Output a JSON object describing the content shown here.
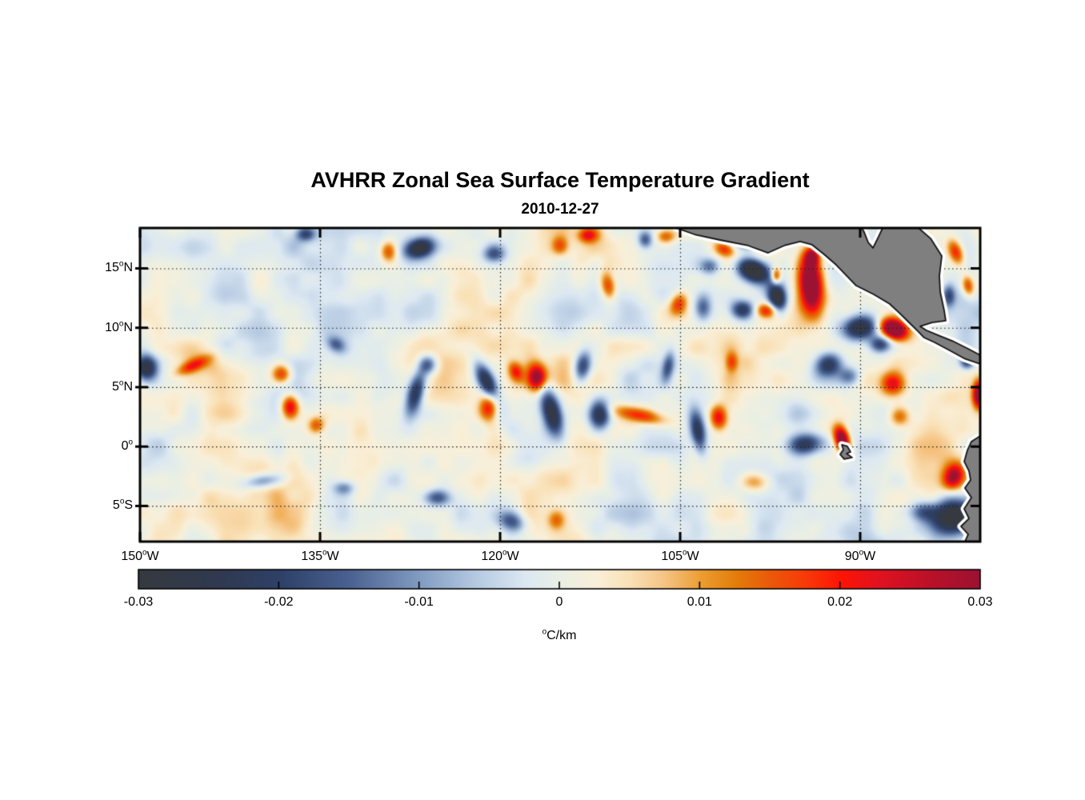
{
  "chart_data": {
    "type": "heatmap",
    "title": "AVHRR Zonal Sea Surface Temperature Gradient",
    "date": "2010-12-27",
    "geo": {
      "lon_range": [
        -150,
        -80
      ],
      "lat_range": [
        -8,
        18.4
      ]
    },
    "x_axis": {
      "ticks": [
        {
          "value": -150,
          "label": "150°W"
        },
        {
          "value": -135,
          "label": "135°W"
        },
        {
          "value": -120,
          "label": "120°W"
        },
        {
          "value": -105,
          "label": "105°W"
        },
        {
          "value": -90,
          "label": "90°W"
        }
      ]
    },
    "y_axis": {
      "ticks": [
        {
          "value": 15,
          "label": "15°N"
        },
        {
          "value": 10,
          "label": "10°N"
        },
        {
          "value": 5,
          "label": "5°N"
        },
        {
          "value": 0,
          "label": "0°"
        },
        {
          "value": -5,
          "label": "5°S"
        }
      ]
    },
    "gridlines": {
      "lats": [
        15,
        10,
        5,
        0,
        -5
      ],
      "lons": [
        -135,
        -120,
        -105,
        -90
      ],
      "style": "dotted"
    },
    "colorbar": {
      "min": -0.03,
      "max": 0.03,
      "ticks": [
        -0.03,
        -0.02,
        -0.01,
        0,
        0.01,
        0.02,
        0.03
      ],
      "tick_labels": [
        "-0.03",
        "-0.02",
        "-0.01",
        "0",
        "0.01",
        "0.02",
        "0.03"
      ],
      "units": "°C/km",
      "stops": [
        [
          0.0,
          "#36393f"
        ],
        [
          0.09,
          "#30394f"
        ],
        [
          0.17,
          "#2e4168"
        ],
        [
          0.25,
          "#4a6191"
        ],
        [
          0.33,
          "#7e99c0"
        ],
        [
          0.4,
          "#b4c9e1"
        ],
        [
          0.46,
          "#dce8f2"
        ],
        [
          0.5,
          "#e9efe5"
        ],
        [
          0.545,
          "#f9efd8"
        ],
        [
          0.585,
          "#f9e0b5"
        ],
        [
          0.625,
          "#f5c484"
        ],
        [
          0.67,
          "#ec9c30"
        ],
        [
          0.71,
          "#e37d0b"
        ],
        [
          0.75,
          "#eb5a0a"
        ],
        [
          0.79,
          "#f73c08"
        ],
        [
          0.835,
          "#fd1405"
        ],
        [
          0.88,
          "#e11220"
        ],
        [
          0.94,
          "#ba1129"
        ],
        [
          1.0,
          "#9c1232"
        ]
      ]
    },
    "field": {
      "units": "°C/km",
      "seed": 7,
      "noise": {
        "bias": 0.0008,
        "octave_amps": [
          0.0045,
          0.004,
          0.0022
        ],
        "octave_wavelengths_deg": [
          6.0,
          2.8,
          1.4
        ]
      },
      "feature_format": [
        "lon",
        "lat",
        "amplitude",
        "sigma_lon_deg",
        "sigma_lat_deg",
        "rotation_deg"
      ],
      "features": [
        [
          -94.1,
          13.7,
          0.042,
          1.0,
          2.5,
          5
        ],
        [
          -94.0,
          16.0,
          0.024,
          0.55,
          0.75,
          0
        ],
        [
          -97.0,
          14.35,
          0.022,
          0.4,
          0.7,
          0
        ],
        [
          -97.8,
          11.45,
          0.022,
          0.9,
          0.65,
          0
        ],
        [
          -101.3,
          16.6,
          0.018,
          0.9,
          0.6,
          -20
        ],
        [
          -98.9,
          14.8,
          -0.036,
          1.3,
          0.9,
          -20
        ],
        [
          -96.9,
          12.5,
          -0.034,
          0.75,
          1.3,
          10
        ],
        [
          -99.8,
          11.5,
          -0.024,
          1.0,
          0.8,
          0
        ],
        [
          -99.3,
          17.4,
          -0.026,
          1.2,
          0.7,
          0
        ],
        [
          -102.5,
          15.2,
          -0.015,
          0.8,
          0.7,
          0
        ],
        [
          -87.2,
          9.9,
          0.042,
          1.15,
          0.8,
          -25
        ],
        [
          -90.0,
          10.0,
          -0.03,
          1.5,
          1.0,
          10
        ],
        [
          -88.3,
          8.6,
          -0.02,
          0.9,
          0.7,
          0
        ],
        [
          -92.7,
          6.9,
          -0.021,
          1.2,
          1.0,
          20
        ],
        [
          -90.9,
          5.9,
          -0.015,
          0.9,
          0.8,
          0
        ],
        [
          -87.3,
          5.3,
          0.021,
          1.0,
          1.0,
          0
        ],
        [
          -86.7,
          2.5,
          0.012,
          0.8,
          0.8,
          0
        ],
        [
          -81.1,
          7.1,
          -0.02,
          0.6,
          0.6,
          0
        ],
        [
          -80.1,
          4.4,
          0.034,
          0.5,
          1.2,
          0
        ],
        [
          -82.0,
          16.3,
          0.02,
          0.6,
          1.1,
          20
        ],
        [
          -81.0,
          13.5,
          0.019,
          0.5,
          0.9,
          10
        ],
        [
          -82.6,
          12.7,
          -0.016,
          0.5,
          0.9,
          0
        ],
        [
          -91.5,
          0.6,
          0.036,
          0.6,
          1.1,
          15
        ],
        [
          -94.5,
          0.2,
          -0.024,
          1.5,
          0.9,
          5
        ],
        [
          -103.5,
          1.2,
          -0.022,
          0.6,
          1.7,
          10
        ],
        [
          -101.8,
          2.4,
          0.02,
          0.7,
          1.0,
          0
        ],
        [
          -82.3,
          -6.0,
          -0.034,
          2.0,
          1.5,
          15
        ],
        [
          -84.8,
          -5.5,
          -0.015,
          1.2,
          0.8,
          0
        ],
        [
          -82.2,
          -2.5,
          0.024,
          0.8,
          1.1,
          -20
        ],
        [
          -98.7,
          -3.0,
          0.012,
          1.2,
          0.8,
          0
        ],
        [
          -113.1,
          6.75,
          -0.022,
          0.7,
          1.3,
          -10
        ],
        [
          -115.7,
          2.9,
          -0.03,
          0.8,
          2.2,
          15
        ],
        [
          -116.9,
          5.8,
          0.03,
          0.8,
          1.1,
          0
        ],
        [
          -118.7,
          6.3,
          0.018,
          0.6,
          0.9,
          20
        ],
        [
          -121.1,
          5.4,
          -0.028,
          0.7,
          1.8,
          25
        ],
        [
          -120.9,
          3.25,
          0.024,
          0.8,
          1.2,
          0
        ],
        [
          -111.7,
          2.7,
          -0.028,
          0.9,
          1.2,
          0
        ],
        [
          -108.3,
          2.6,
          0.016,
          2.2,
          0.6,
          -12
        ],
        [
          -106.0,
          6.7,
          -0.016,
          0.5,
          1.3,
          -10
        ],
        [
          -100.7,
          7.1,
          0.014,
          0.5,
          0.8,
          0
        ],
        [
          -111.0,
          13.5,
          0.018,
          0.6,
          1.2,
          10
        ],
        [
          -105.1,
          12.1,
          0.018,
          0.7,
          1.0,
          -20
        ],
        [
          -103.1,
          11.7,
          -0.016,
          0.7,
          1.1,
          0
        ],
        [
          -115.0,
          16.9,
          0.016,
          0.7,
          0.8,
          0
        ],
        [
          -112.7,
          17.8,
          0.018,
          0.8,
          0.6,
          0
        ],
        [
          -106.2,
          17.7,
          0.016,
          0.8,
          0.6,
          0
        ],
        [
          -107.9,
          17.4,
          -0.016,
          0.6,
          0.7,
          0
        ],
        [
          -120.5,
          16.2,
          -0.016,
          0.9,
          0.7,
          0
        ],
        [
          -126.7,
          16.7,
          -0.03,
          1.2,
          0.8,
          15
        ],
        [
          -129.3,
          16.4,
          0.018,
          0.7,
          0.9,
          0
        ],
        [
          -136.2,
          17.9,
          -0.018,
          0.8,
          0.6,
          0
        ],
        [
          -149.5,
          6.6,
          -0.03,
          0.9,
          1.1,
          0
        ],
        [
          -145.6,
          6.8,
          0.015,
          1.5,
          0.5,
          25
        ],
        [
          -138.2,
          6.1,
          0.02,
          0.8,
          0.8,
          0
        ],
        [
          -137.5,
          3.4,
          0.023,
          0.7,
          1.0,
          0
        ],
        [
          -135.3,
          1.8,
          0.014,
          0.7,
          0.7,
          0
        ],
        [
          -133.7,
          8.6,
          -0.013,
          0.8,
          0.6,
          -30
        ],
        [
          -127.0,
          4.6,
          -0.026,
          0.7,
          1.9,
          -15
        ],
        [
          -126.0,
          6.9,
          -0.017,
          0.8,
          0.8,
          0
        ],
        [
          -139.7,
          -2.9,
          -0.014,
          1.8,
          0.6,
          8
        ],
        [
          -125.3,
          -4.3,
          -0.018,
          1.1,
          0.7,
          0
        ],
        [
          -133.0,
          -3.5,
          -0.012,
          0.9,
          0.6,
          0
        ],
        [
          -119.0,
          -6.3,
          -0.016,
          1.2,
          0.8,
          -20
        ],
        [
          -115.3,
          -6.2,
          0.012,
          0.7,
          0.8,
          0
        ],
        [
          -144.7,
          6.0,
          0.007,
          3.0,
          2.5,
          0
        ]
      ]
    },
    "land": {
      "fill": "#7f7f7f",
      "outline": "#141414",
      "halo": "#ffffff",
      "polygons": {
        "mexico_central_america": [
          [
            -105.33,
            18.4
          ],
          [
            -103.8,
            17.86
          ],
          [
            -101.67,
            17.39
          ],
          [
            -99.33,
            16.92
          ],
          [
            -97.67,
            16.31
          ],
          [
            -96.33,
            16.92
          ],
          [
            -95.0,
            17.26
          ],
          [
            -94.0,
            16.99
          ],
          [
            -93.0,
            16.18
          ],
          [
            -92.0,
            15.3
          ],
          [
            -90.33,
            13.55
          ],
          [
            -88.87,
            12.81
          ],
          [
            -87.53,
            12.0
          ],
          [
            -86.67,
            11.19
          ],
          [
            -86.0,
            10.52
          ],
          [
            -85.13,
            9.65
          ],
          [
            -84.67,
            9.17
          ],
          [
            -83.8,
            8.77
          ],
          [
            -82.67,
            8.16
          ],
          [
            -81.33,
            7.42
          ],
          [
            -80.0,
            6.95
          ],
          [
            -80.0,
            7.69
          ],
          [
            -81.0,
            8.23
          ],
          [
            -82.33,
            8.9
          ],
          [
            -83.53,
            9.38
          ],
          [
            -84.47,
            9.78
          ],
          [
            -85.0,
            10.12
          ],
          [
            -84.0,
            10.45
          ],
          [
            -82.87,
            10.59
          ],
          [
            -83.0,
            11.46
          ],
          [
            -83.33,
            13.01
          ],
          [
            -83.4,
            14.36
          ],
          [
            -83.2,
            16.04
          ],
          [
            -84.13,
            17.52
          ],
          [
            -85.13,
            18.4
          ],
          [
            -88.13,
            18.4
          ],
          [
            -88.47,
            17.66
          ],
          [
            -88.93,
            16.72
          ],
          [
            -89.33,
            17.19
          ],
          [
            -89.67,
            18.06
          ],
          [
            -89.87,
            18.4
          ]
        ],
        "south_america": [
          [
            -80.0,
            0.89
          ],
          [
            -80.73,
            0.42
          ],
          [
            -81.07,
            -0.32
          ],
          [
            -81.33,
            -1.26
          ],
          [
            -80.93,
            -2.07
          ],
          [
            -80.8,
            -2.81
          ],
          [
            -81.27,
            -3.49
          ],
          [
            -80.73,
            -4.29
          ],
          [
            -81.33,
            -5.24
          ],
          [
            -80.93,
            -6.05
          ],
          [
            -81.6,
            -6.72
          ],
          [
            -81.0,
            -7.39
          ],
          [
            -81.27,
            -8.0
          ],
          [
            -80.0,
            -8.0
          ]
        ],
        "galapagos": [
          [
            -91.53,
            0.15
          ],
          [
            -91.07,
            0.02
          ],
          [
            -90.8,
            -0.45
          ],
          [
            -91.13,
            -0.59
          ],
          [
            -90.67,
            -0.92
          ],
          [
            -91.33,
            -1.06
          ],
          [
            -91.67,
            -0.66
          ],
          [
            -91.4,
            -0.25
          ]
        ]
      }
    }
  }
}
